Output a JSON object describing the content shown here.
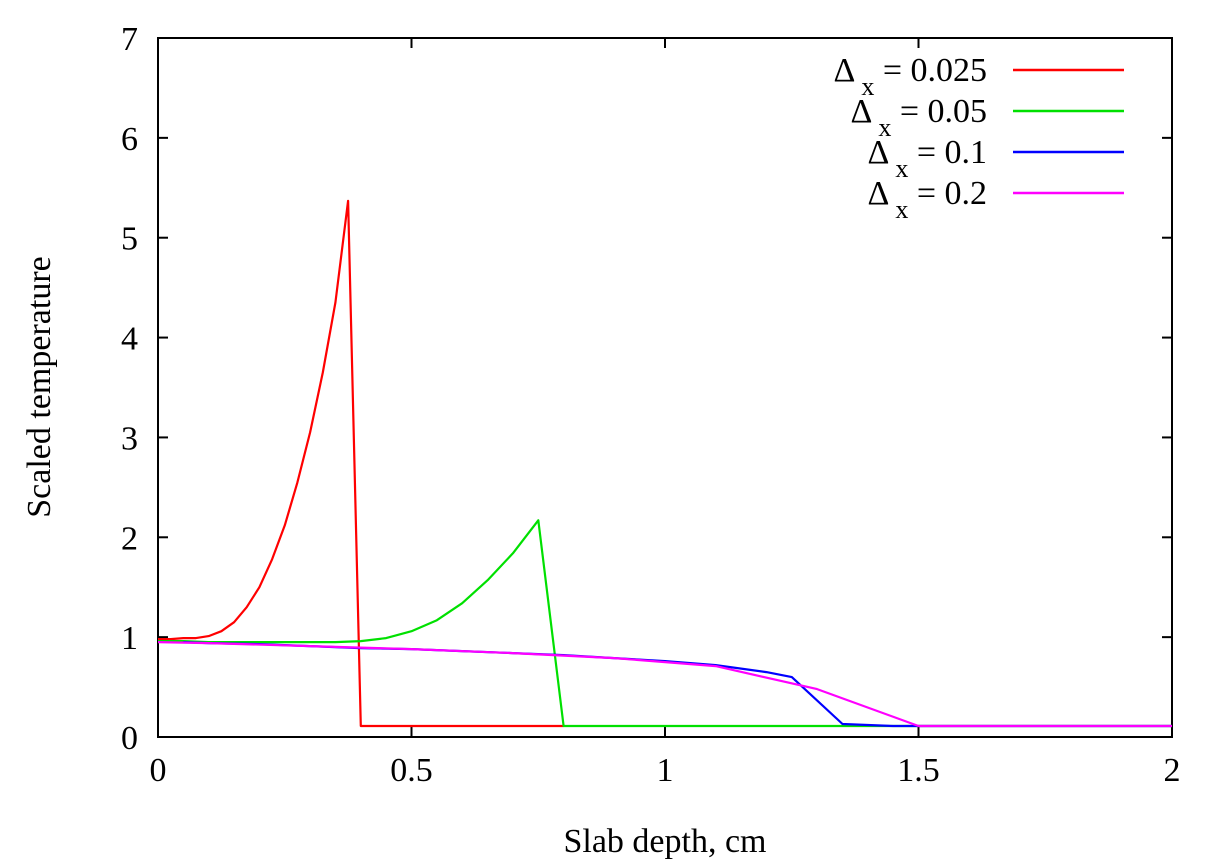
{
  "chart_data": {
    "type": "line",
    "title": "",
    "xlabel": "Slab depth, cm",
    "ylabel": "Scaled temperature",
    "xlim": [
      0,
      2
    ],
    "ylim": [
      0,
      7
    ],
    "xticks": [
      0,
      0.5,
      1,
      1.5,
      2
    ],
    "xtick_labels": [
      "0",
      "0.5",
      "1",
      "1.5",
      "2"
    ],
    "yticks": [
      0,
      1,
      2,
      3,
      4,
      5,
      6,
      7
    ],
    "ytick_labels": [
      "0",
      "1",
      "2",
      "3",
      "4",
      "5",
      "6",
      "7"
    ],
    "grid": false,
    "legend_position": "top-right",
    "series": [
      {
        "name": "Δ x = 0.025",
        "legend_symbol": "Δ",
        "legend_subscript": "x",
        "legend_rest": " = 0.025",
        "color": "#ff0000",
        "x": [
          0,
          0.025,
          0.05,
          0.075,
          0.1,
          0.125,
          0.15,
          0.175,
          0.2,
          0.225,
          0.25,
          0.275,
          0.3,
          0.325,
          0.35,
          0.375,
          0.4,
          0.425,
          0.5,
          0.6,
          0.7,
          0.8
        ],
        "y": [
          0.98,
          0.98,
          0.99,
          0.99,
          1.01,
          1.06,
          1.15,
          1.3,
          1.5,
          1.78,
          2.12,
          2.55,
          3.05,
          3.65,
          4.35,
          5.37,
          0.11,
          0.11,
          0.11,
          0.11,
          0.11,
          0.11
        ]
      },
      {
        "name": "Δ x = 0.05",
        "legend_symbol": "Δ",
        "legend_subscript": "x",
        "legend_rest": " = 0.05",
        "color": "#00e000",
        "x": [
          0,
          0.05,
          0.1,
          0.15,
          0.2,
          0.25,
          0.3,
          0.35,
          0.4,
          0.45,
          0.5,
          0.55,
          0.6,
          0.65,
          0.7,
          0.75,
          0.8,
          0.85,
          1,
          1.2,
          1.4,
          1.6,
          2
        ],
        "y": [
          0.96,
          0.96,
          0.95,
          0.95,
          0.95,
          0.95,
          0.95,
          0.95,
          0.96,
          0.99,
          1.06,
          1.17,
          1.34,
          1.57,
          1.84,
          2.17,
          0.11,
          0.11,
          0.11,
          0.11,
          0.11,
          0.11,
          0.11
        ]
      },
      {
        "name": "Δ x = 0.1",
        "legend_symbol": "Δ",
        "legend_subscript": "x",
        "legend_rest": " = 0.1",
        "color": "#0000ff",
        "x": [
          0.05,
          0.1,
          0.2,
          0.3,
          0.4,
          0.5,
          0.6,
          0.7,
          0.8,
          0.9,
          1,
          1.1,
          1.2,
          1.25,
          1.35,
          1.45,
          1.5,
          2
        ],
        "y": [
          0.95,
          0.94,
          0.93,
          0.91,
          0.89,
          0.88,
          0.86,
          0.84,
          0.82,
          0.79,
          0.76,
          0.72,
          0.65,
          0.6,
          0.13,
          0.11,
          0.11,
          0.11
        ]
      },
      {
        "name": "Δ x = 0.2",
        "legend_symbol": "Δ",
        "legend_subscript": "x",
        "legend_rest": " = 0.2",
        "color": "#ff00ff",
        "x": [
          0,
          0.1,
          0.3,
          0.5,
          0.7,
          0.9,
          1.1,
          1.3,
          1.5,
          1.7,
          1.9,
          2
        ],
        "y": [
          0.95,
          0.94,
          0.91,
          0.88,
          0.84,
          0.79,
          0.71,
          0.48,
          0.11,
          0.11,
          0.11,
          0.11
        ]
      }
    ]
  }
}
